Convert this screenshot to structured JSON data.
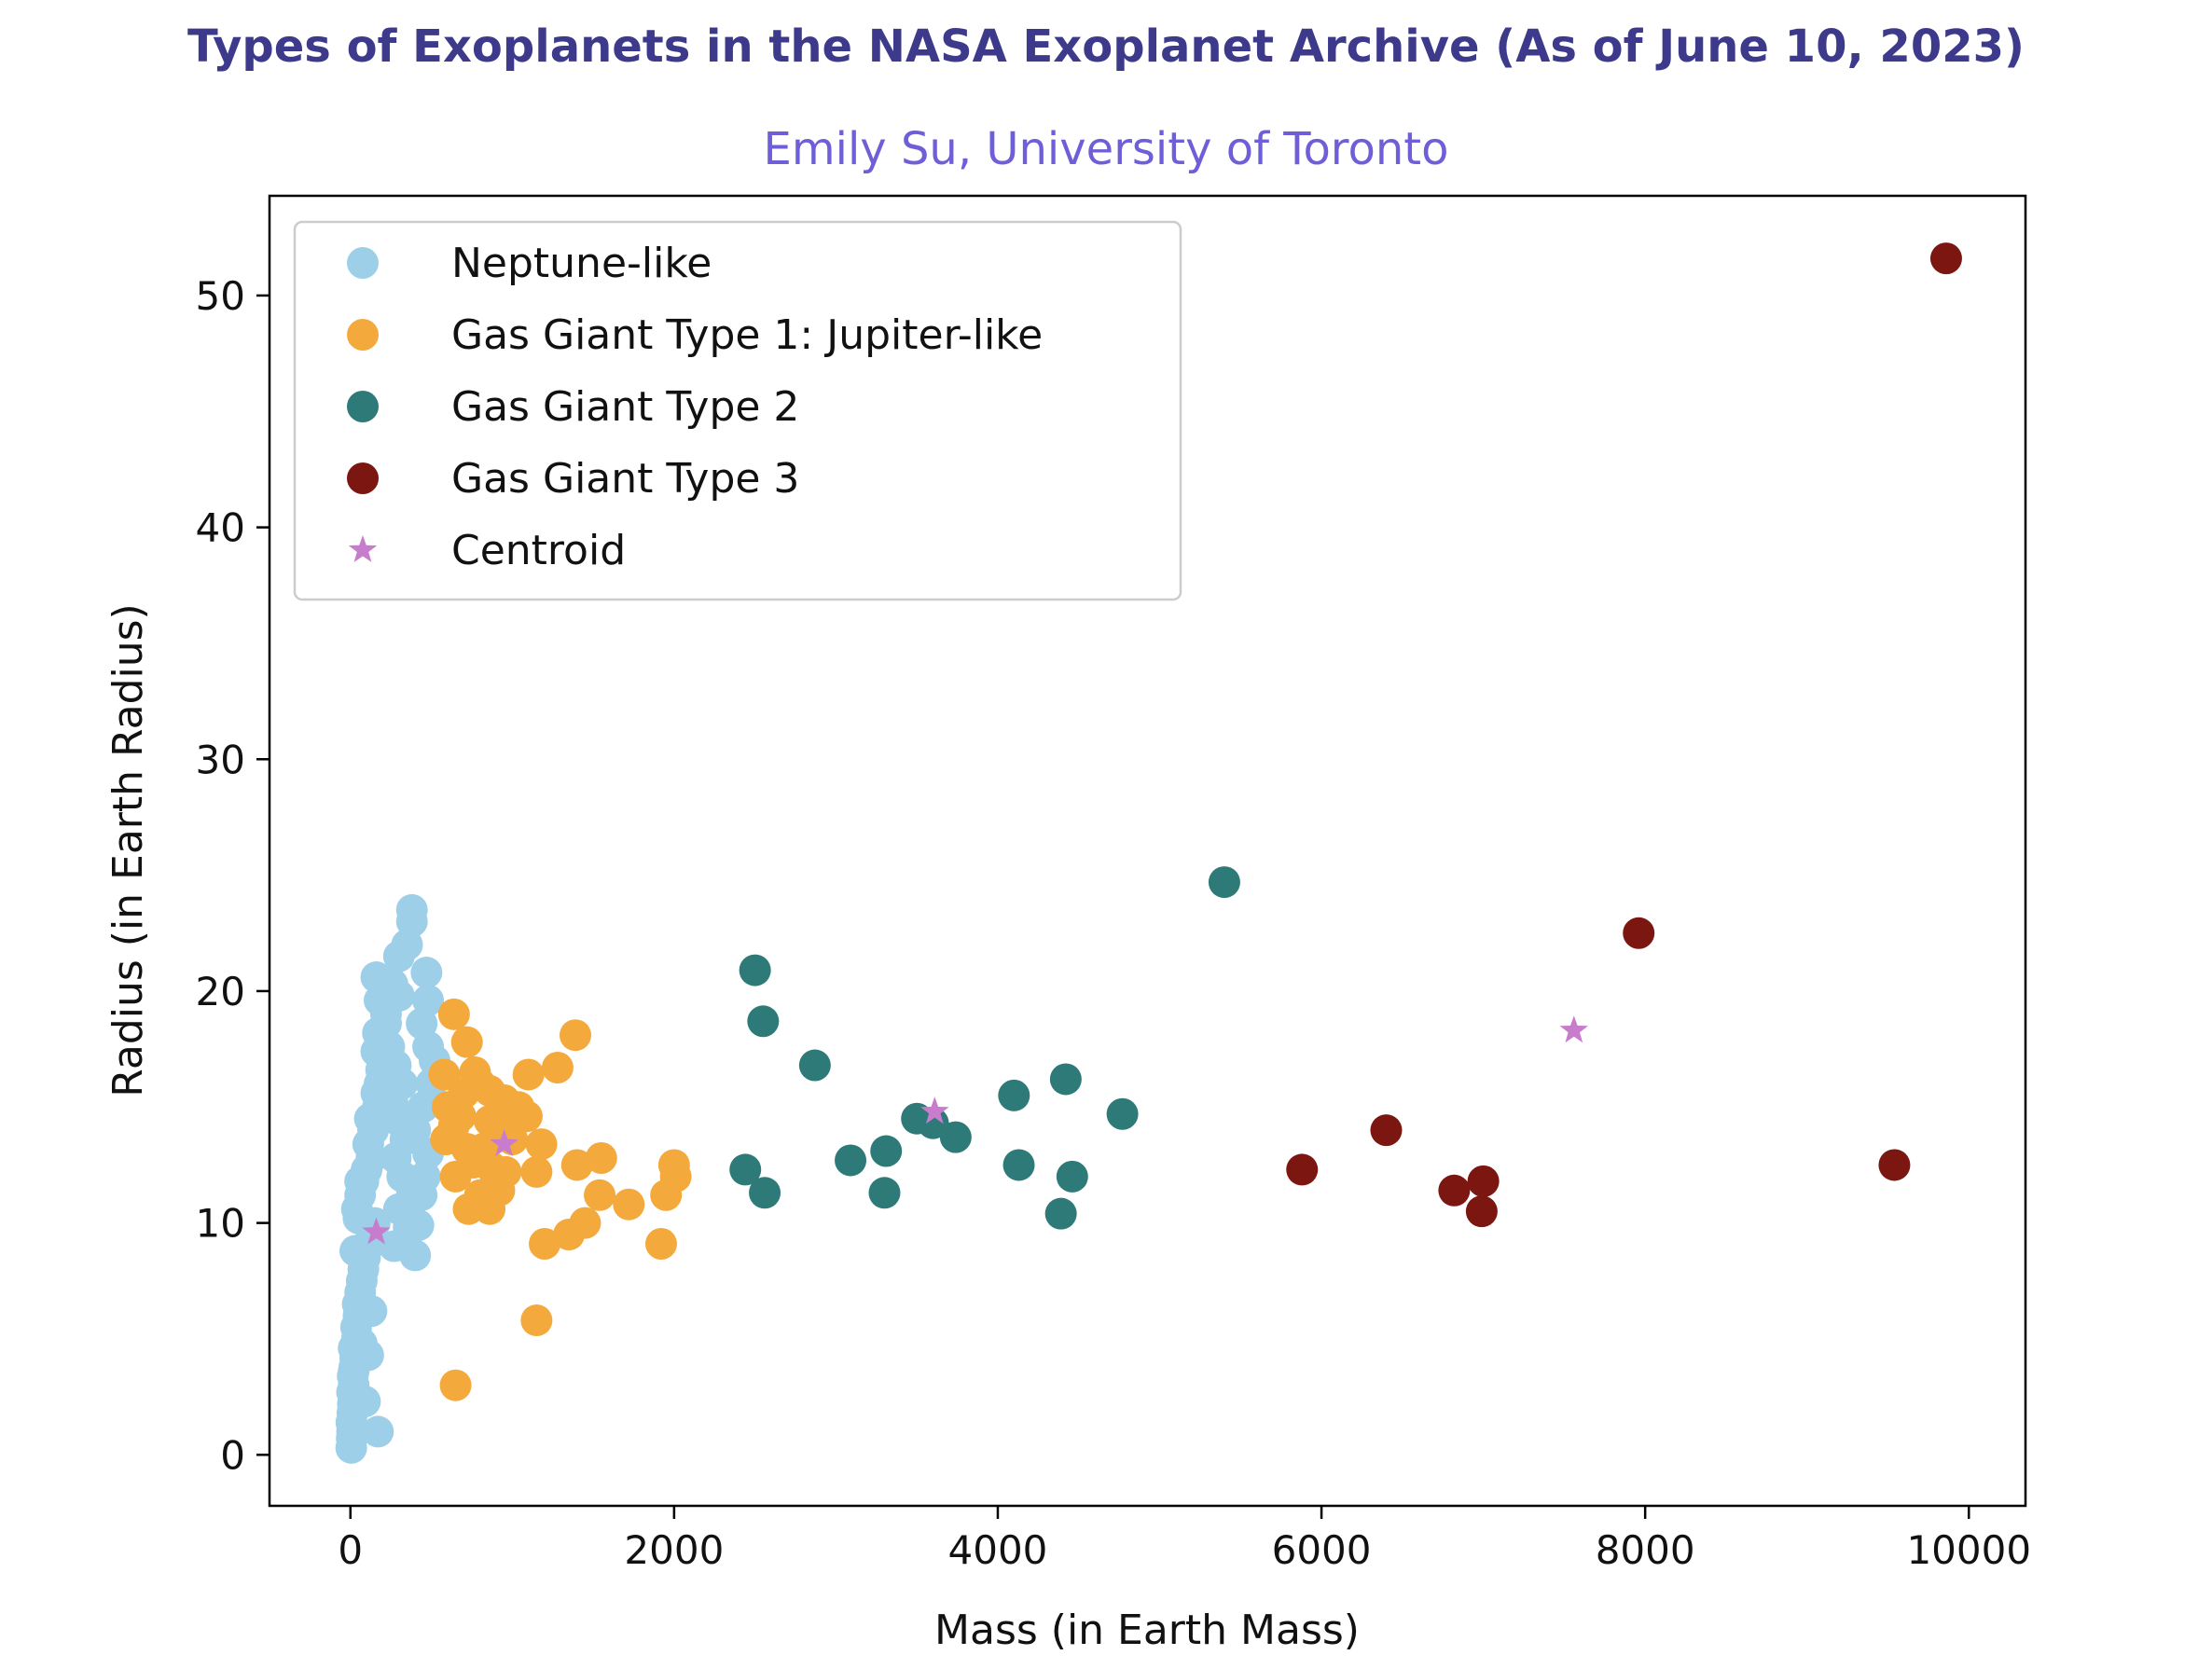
{
  "chart_data": {
    "type": "scatter",
    "title": "Types of Exoplanets in the NASA Exoplanet Archive (As of June 10, 2023)",
    "subtitle": "Emily Su, University of Toronto",
    "xlabel": "Mass (in Earth Mass)",
    "ylabel": "Radius (in Earth Radius)",
    "xlim": [
      -500,
      10350
    ],
    "ylim": [
      -2.2,
      54.3
    ],
    "xticks": [
      0,
      2000,
      4000,
      6000,
      8000,
      10000
    ],
    "yticks": [
      0,
      10,
      20,
      30,
      40,
      50
    ],
    "xtick_labels": [
      "0",
      "2000",
      "4000",
      "6000",
      "8000",
      "10000"
    ],
    "ytick_labels": [
      "0",
      "10",
      "20",
      "30",
      "40",
      "50"
    ],
    "grid": false,
    "legend_position": "top-left",
    "series": [
      {
        "name": "Neptune-like",
        "color": "#9dcfe9",
        "marker": "circle",
        "points": [
          [
            5,
            0.3
          ],
          [
            8,
            0.7
          ],
          [
            10,
            1.0
          ],
          [
            6,
            1.4
          ],
          [
            12,
            1.8
          ],
          [
            15,
            2.2
          ],
          [
            10,
            2.7
          ],
          [
            20,
            3.0
          ],
          [
            14,
            3.4
          ],
          [
            25,
            3.8
          ],
          [
            30,
            4.2
          ],
          [
            20,
            4.6
          ],
          [
            40,
            5.0
          ],
          [
            35,
            5.5
          ],
          [
            50,
            6.0
          ],
          [
            45,
            6.5
          ],
          [
            60,
            7.0
          ],
          [
            70,
            7.5
          ],
          [
            80,
            8.0
          ],
          [
            90,
            8.5
          ],
          [
            110,
            9.0
          ],
          [
            130,
            9.5
          ],
          [
            150,
            10.0
          ],
          [
            40,
            10.6
          ],
          [
            60,
            11.2
          ],
          [
            80,
            11.8
          ],
          [
            100,
            12.3
          ],
          [
            130,
            12.8
          ],
          [
            110,
            13.4
          ],
          [
            140,
            14.0
          ],
          [
            120,
            14.5
          ],
          [
            170,
            15.0
          ],
          [
            160,
            15.6
          ],
          [
            180,
            16.0
          ],
          [
            190,
            16.6
          ],
          [
            160,
            17.4
          ],
          [
            200,
            18.0
          ],
          [
            220,
            18.6
          ],
          [
            180,
            19.6
          ],
          [
            160,
            20.6
          ],
          [
            260,
            20.3
          ],
          [
            300,
            19.8
          ],
          [
            240,
            17.6
          ],
          [
            280,
            16.8
          ],
          [
            320,
            16.0
          ],
          [
            260,
            15.2
          ],
          [
            300,
            14.4
          ],
          [
            340,
            13.6
          ],
          [
            280,
            12.8
          ],
          [
            320,
            12.0
          ],
          [
            380,
            11.4
          ],
          [
            300,
            10.6
          ],
          [
            360,
            9.8
          ],
          [
            270,
            9.0
          ],
          [
            400,
            8.6
          ],
          [
            420,
            9.9
          ],
          [
            440,
            11.2
          ],
          [
            460,
            12.0
          ],
          [
            480,
            13.0
          ],
          [
            400,
            14.0
          ],
          [
            450,
            15.0
          ],
          [
            500,
            16.0
          ],
          [
            520,
            17.0
          ],
          [
            480,
            17.6
          ],
          [
            440,
            18.6
          ],
          [
            480,
            19.6
          ],
          [
            470,
            20.8
          ],
          [
            380,
            23.0
          ],
          [
            380,
            23.5
          ],
          [
            350,
            22.0
          ],
          [
            300,
            21.5
          ],
          [
            220,
            19.0
          ],
          [
            170,
            18.2
          ],
          [
            190,
            14.8
          ],
          [
            60,
            11.8
          ],
          [
            50,
            10.2
          ],
          [
            30,
            8.8
          ],
          [
            130,
            6.2
          ],
          [
            110,
            4.3
          ],
          [
            170,
            1.0
          ],
          [
            90,
            2.3
          ],
          [
            20,
            3.6
          ],
          [
            70,
            4.8
          ]
        ]
      },
      {
        "name": "Gas Giant Type 1: Jupiter-like",
        "color": "#f3a93c",
        "marker": "circle",
        "points": [
          [
            650,
            3.0
          ],
          [
            1150,
            5.8
          ],
          [
            1200,
            9.1
          ],
          [
            1350,
            9.5
          ],
          [
            1450,
            10.0
          ],
          [
            1720,
            10.8
          ],
          [
            1920,
            9.1
          ],
          [
            1950,
            11.2
          ],
          [
            2000,
            12.5
          ],
          [
            2010,
            12.0
          ],
          [
            1550,
            12.8
          ],
          [
            1540,
            11.2
          ],
          [
            1400,
            12.5
          ],
          [
            1180,
            13.4
          ],
          [
            1150,
            12.2
          ],
          [
            1090,
            14.6
          ],
          [
            1100,
            16.4
          ],
          [
            1280,
            16.7
          ],
          [
            1390,
            18.1
          ],
          [
            640,
            19.0
          ],
          [
            720,
            17.8
          ],
          [
            770,
            16.5
          ],
          [
            860,
            15.7
          ],
          [
            950,
            15.3
          ],
          [
            1000,
            14.2
          ],
          [
            900,
            13.8
          ],
          [
            870,
            12.4
          ],
          [
            920,
            11.4
          ],
          [
            860,
            10.6
          ],
          [
            800,
            11.2
          ],
          [
            730,
            10.6
          ],
          [
            650,
            12.0
          ],
          [
            590,
            13.6
          ],
          [
            600,
            15.0
          ],
          [
            580,
            16.4
          ],
          [
            680,
            14.6
          ],
          [
            720,
            13.2
          ],
          [
            760,
            12.6
          ],
          [
            820,
            13.2
          ],
          [
            860,
            14.4
          ],
          [
            800,
            16.0
          ],
          [
            900,
            12.0
          ],
          [
            960,
            12.2
          ],
          [
            1040,
            15.0
          ],
          [
            1000,
            13.6
          ],
          [
            700,
            15.6
          ],
          [
            640,
            14.2
          ]
        ]
      },
      {
        "name": "Gas Giant Type 2",
        "color": "#2e7a78",
        "marker": "circle",
        "points": [
          [
            5400,
            24.7
          ],
          [
            2500,
            20.9
          ],
          [
            2550,
            18.7
          ],
          [
            2870,
            16.8
          ],
          [
            3500,
            14.5
          ],
          [
            3600,
            14.3
          ],
          [
            3740,
            13.7
          ],
          [
            4100,
            15.5
          ],
          [
            4420,
            16.2
          ],
          [
            4770,
            14.7
          ],
          [
            3090,
            12.7
          ],
          [
            3310,
            13.1
          ],
          [
            3300,
            11.3
          ],
          [
            2440,
            12.3
          ],
          [
            2560,
            11.3
          ],
          [
            4130,
            12.5
          ],
          [
            4460,
            12.0
          ],
          [
            4390,
            10.4
          ]
        ]
      },
      {
        "name": "Gas Giant Type 3",
        "color": "#7b1611",
        "marker": "circle",
        "points": [
          [
            9860,
            51.6
          ],
          [
            7960,
            22.5
          ],
          [
            6400,
            14.0
          ],
          [
            5880,
            12.3
          ],
          [
            6820,
            11.4
          ],
          [
            7000,
            11.8
          ],
          [
            6990,
            10.5
          ],
          [
            9540,
            12.5
          ]
        ]
      },
      {
        "name": "Centroid",
        "color": "#c77ccc",
        "marker": "star",
        "points": [
          [
            160,
            9.6
          ],
          [
            950,
            13.4
          ],
          [
            3610,
            14.8
          ],
          [
            7560,
            18.3
          ]
        ]
      }
    ]
  }
}
